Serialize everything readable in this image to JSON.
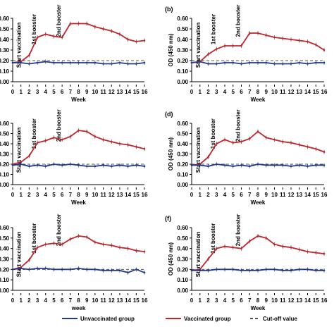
{
  "chart_data": [
    {
      "type": "line",
      "panel_label": "",
      "xlabel": "Week",
      "ylabel": "",
      "x": [
        0,
        1,
        2,
        3,
        4,
        5,
        6,
        7,
        8,
        9,
        10,
        11,
        12,
        13,
        14,
        15,
        16
      ],
      "ylim": [
        0,
        0.6
      ],
      "yticks": [
        "0.00",
        "0.10",
        "0.20",
        "0.30",
        "0.40",
        "0.50",
        "0.60"
      ],
      "cutoff": 0.2,
      "annotations": [
        {
          "text": "Start vaccination",
          "x": 1
        },
        {
          "text": "1st booster",
          "x": 3
        },
        {
          "text": "2nd booster",
          "x": 6
        }
      ],
      "series": [
        {
          "name": "Vaccinated group",
          "color": "#c0252b",
          "values": [
            0.18,
            0.19,
            0.25,
            0.42,
            0.45,
            0.43,
            0.42,
            0.55,
            0.55,
            0.55,
            0.52,
            0.5,
            0.48,
            0.45,
            0.4,
            0.38,
            0.39
          ]
        },
        {
          "name": "Unvaccinated group",
          "color": "#1f3a8f",
          "values": [
            0.18,
            0.18,
            0.17,
            0.18,
            0.19,
            0.18,
            0.18,
            0.18,
            0.18,
            0.18,
            0.18,
            0.17,
            0.17,
            0.18,
            0.17,
            0.17,
            0.18
          ]
        }
      ]
    },
    {
      "type": "line",
      "panel_label": "(b)",
      "xlabel": "Week",
      "ylabel": "OD (450 nm)",
      "x": [
        0,
        1,
        2,
        3,
        4,
        5,
        6,
        7,
        8,
        9,
        10,
        11,
        12,
        13,
        14,
        15,
        16
      ],
      "ylim": [
        0,
        0.6
      ],
      "yticks": [
        "0.00",
        "0.10",
        "0.20",
        "0.30",
        "0.40",
        "0.50",
        "0.60"
      ],
      "cutoff": 0.2,
      "annotations": [
        {
          "text": "Start vaccination",
          "x": 1
        },
        {
          "text": "1st booster",
          "x": 3
        },
        {
          "text": "2nd booster",
          "x": 6
        }
      ],
      "series": [
        {
          "name": "Vaccinated group",
          "color": "#c0252b",
          "values": [
            0.18,
            0.19,
            0.26,
            0.31,
            0.34,
            0.34,
            0.34,
            0.46,
            0.46,
            0.44,
            0.42,
            0.41,
            0.4,
            0.39,
            0.38,
            0.35,
            0.3
          ]
        },
        {
          "name": "Unvaccinated group",
          "color": "#1f3a8f",
          "values": [
            0.18,
            0.19,
            0.17,
            0.17,
            0.18,
            0.18,
            0.17,
            0.18,
            0.18,
            0.18,
            0.17,
            0.17,
            0.17,
            0.18,
            0.17,
            0.18,
            0.18
          ]
        }
      ]
    },
    {
      "type": "line",
      "panel_label": "",
      "xlabel": "Week",
      "ylabel": "",
      "x": [
        0,
        1,
        2,
        3,
        4,
        5,
        6,
        7,
        8,
        9,
        10,
        11,
        12,
        13,
        14,
        15,
        16
      ],
      "ylim": [
        0,
        0.6
      ],
      "yticks": [
        "0.00",
        "0.10",
        "0.20",
        "0.30",
        "0.40",
        "0.50",
        "0.60"
      ],
      "cutoff": 0.2,
      "annotations": [
        {
          "text": "Start vaccination",
          "x": 1
        },
        {
          "text": "1st booster",
          "x": 3
        },
        {
          "text": "2nd booster",
          "x": 6
        }
      ],
      "series": [
        {
          "name": "Vaccinated group",
          "color": "#c0252b",
          "values": [
            0.2,
            0.22,
            0.28,
            0.41,
            0.43,
            0.46,
            0.44,
            0.47,
            0.53,
            0.52,
            0.47,
            0.44,
            0.42,
            0.4,
            0.39,
            0.37,
            0.35
          ]
        },
        {
          "name": "Unvaccinated group",
          "color": "#1f3a8f",
          "values": [
            0.19,
            0.2,
            0.18,
            0.19,
            0.18,
            0.2,
            0.19,
            0.2,
            0.19,
            0.18,
            0.18,
            0.19,
            0.18,
            0.19,
            0.18,
            0.19,
            0.18
          ]
        }
      ]
    },
    {
      "type": "line",
      "panel_label": "(d)",
      "xlabel": "Week",
      "ylabel": "OD (450 nm)",
      "x": [
        0,
        1,
        2,
        3,
        4,
        5,
        6,
        7,
        8,
        9,
        10,
        11,
        12,
        13,
        14,
        15,
        16
      ],
      "ylim": [
        0,
        0.6
      ],
      "yticks": [
        "0.00",
        "0.10",
        "0.20",
        "0.30",
        "0.40",
        "0.50",
        "0.60"
      ],
      "cutoff": 0.2,
      "annotations": [
        {
          "text": "Start vaccination",
          "x": 1
        },
        {
          "text": "1st booster",
          "x": 3
        },
        {
          "text": "2nd booster",
          "x": 6
        }
      ],
      "series": [
        {
          "name": "Vaccinated group",
          "color": "#c0252b",
          "values": [
            0.19,
            0.2,
            0.27,
            0.4,
            0.44,
            0.41,
            0.42,
            0.45,
            0.52,
            0.46,
            0.44,
            0.42,
            0.41,
            0.39,
            0.37,
            0.35,
            0.32
          ]
        },
        {
          "name": "Unvaccinated group",
          "color": "#1f3a8f",
          "values": [
            0.19,
            0.19,
            0.18,
            0.2,
            0.19,
            0.18,
            0.19,
            0.18,
            0.2,
            0.19,
            0.19,
            0.19,
            0.18,
            0.19,
            0.18,
            0.19,
            0.19
          ]
        }
      ]
    },
    {
      "type": "line",
      "panel_label": "",
      "xlabel": "week",
      "ylabel": "",
      "x": [
        0,
        1,
        2,
        3,
        4,
        5,
        6,
        7,
        8,
        9,
        10,
        11,
        12,
        13,
        14,
        15,
        16
      ],
      "ylim": [
        0,
        0.6
      ],
      "yticks": [
        "0.00",
        "0.10",
        "0.20",
        "0.30",
        "0.40",
        "0.50",
        "0.60"
      ],
      "cutoff": 0.2,
      "annotations": [
        {
          "text": "Start vaccination",
          "x": 1
        },
        {
          "text": "1st booster",
          "x": 3
        },
        {
          "text": "2nd booster",
          "x": 6
        }
      ],
      "series": [
        {
          "name": "Vaccinated group",
          "color": "#c0252b",
          "values": [
            0.2,
            0.22,
            0.29,
            0.41,
            0.44,
            0.45,
            0.44,
            0.49,
            0.52,
            0.51,
            0.46,
            0.44,
            0.43,
            0.41,
            0.4,
            0.38,
            0.37
          ]
        },
        {
          "name": "Unvaccinated group",
          "color": "#1f3a8f",
          "values": [
            0.2,
            0.21,
            0.2,
            0.21,
            0.21,
            0.2,
            0.2,
            0.2,
            0.21,
            0.2,
            0.2,
            0.19,
            0.19,
            0.19,
            0.17,
            0.2,
            0.17
          ]
        }
      ]
    },
    {
      "type": "line",
      "panel_label": "(f)",
      "xlabel": "Week",
      "ylabel": "OD (450 nm)",
      "x": [
        0,
        1,
        2,
        3,
        4,
        5,
        6,
        7,
        8,
        9,
        10,
        11,
        12,
        13,
        14,
        15,
        16
      ],
      "ylim": [
        0,
        0.6
      ],
      "yticks": [
        "0.00",
        "0.10",
        "0.20",
        "0.30",
        "0.40",
        "0.50",
        "0.60"
      ],
      "cutoff": 0.2,
      "annotations": [
        {
          "text": "Start vaccination",
          "x": 1
        },
        {
          "text": "1st booster",
          "x": 3
        },
        {
          "text": "2nd booster",
          "x": 6
        }
      ],
      "series": [
        {
          "name": "Vaccinated group",
          "color": "#c0252b",
          "values": [
            0.19,
            0.2,
            0.3,
            0.4,
            0.42,
            0.41,
            0.4,
            0.47,
            0.52,
            0.5,
            0.44,
            0.42,
            0.41,
            0.39,
            0.37,
            0.36,
            0.35
          ]
        },
        {
          "name": "Unvaccinated group",
          "color": "#1f3a8f",
          "values": [
            0.19,
            0.19,
            0.19,
            0.2,
            0.2,
            0.2,
            0.19,
            0.19,
            0.19,
            0.2,
            0.2,
            0.19,
            0.19,
            0.2,
            0.2,
            0.19,
            0.19
          ]
        }
      ]
    }
  ],
  "legend": {
    "items": [
      {
        "label": "Unvaccinated group",
        "color": "#1f3a8f",
        "style": "solid"
      },
      {
        "label": "Vaccinated group",
        "color": "#c0252b",
        "style": "solid"
      },
      {
        "label": "Cut-off value",
        "color": "#555555",
        "style": "dashed"
      }
    ]
  }
}
